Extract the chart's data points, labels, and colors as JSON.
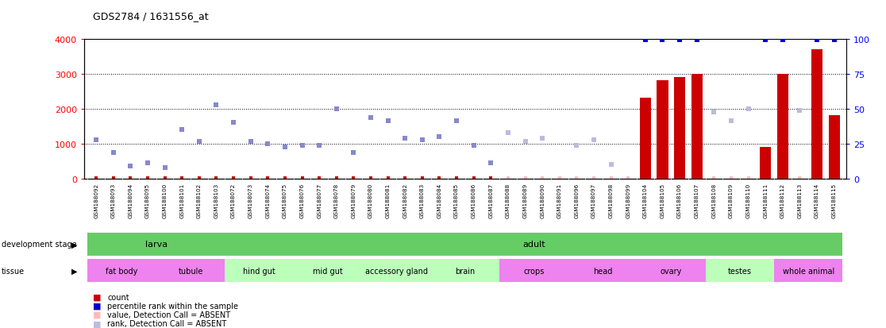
{
  "title": "GDS2784 / 1631556_at",
  "samples": [
    "GSM188092",
    "GSM188093",
    "GSM188094",
    "GSM188095",
    "GSM188100",
    "GSM188101",
    "GSM188102",
    "GSM188103",
    "GSM188072",
    "GSM188073",
    "GSM188074",
    "GSM188075",
    "GSM188076",
    "GSM188077",
    "GSM188078",
    "GSM188079",
    "GSM188080",
    "GSM188081",
    "GSM188082",
    "GSM188083",
    "GSM188084",
    "GSM188085",
    "GSM188086",
    "GSM188087",
    "GSM188088",
    "GSM188089",
    "GSM188090",
    "GSM188091",
    "GSM188096",
    "GSM188097",
    "GSM188098",
    "GSM188099",
    "GSM188104",
    "GSM188105",
    "GSM188106",
    "GSM188107",
    "GSM188108",
    "GSM188109",
    "GSM188110",
    "GSM188111",
    "GSM188112",
    "GSM188113",
    "GSM188114",
    "GSM188115"
  ],
  "count_values": [
    0,
    0,
    0,
    0,
    0,
    0,
    0,
    0,
    0,
    0,
    0,
    0,
    0,
    0,
    0,
    0,
    0,
    0,
    0,
    0,
    0,
    0,
    0,
    0,
    0,
    0,
    0,
    0,
    0,
    0,
    0,
    0,
    2300,
    2800,
    2900,
    3000,
    0,
    0,
    0,
    900,
    3000,
    0,
    3700,
    1800
  ],
  "count_absent": [
    false,
    false,
    false,
    false,
    false,
    false,
    false,
    false,
    false,
    false,
    false,
    false,
    false,
    false,
    false,
    false,
    false,
    false,
    false,
    false,
    false,
    false,
    false,
    false,
    true,
    true,
    true,
    true,
    true,
    true,
    true,
    true,
    false,
    false,
    false,
    false,
    true,
    true,
    true,
    false,
    false,
    true,
    false,
    false
  ],
  "rank_vals": [
    1100,
    750,
    350,
    450,
    300,
    1400,
    1050,
    2100,
    1600,
    1050,
    1000,
    900,
    950,
    950,
    2000,
    750,
    1750,
    1650,
    1150,
    1100,
    1200,
    1650,
    950,
    450,
    null,
    null,
    null,
    null,
    null,
    null,
    null,
    null,
    null,
    null,
    null,
    null,
    null,
    null,
    null,
    null,
    null,
    null,
    null,
    null
  ],
  "rank_pct": [
    null,
    null,
    null,
    null,
    null,
    null,
    null,
    null,
    null,
    null,
    null,
    null,
    null,
    null,
    null,
    null,
    null,
    null,
    null,
    null,
    null,
    null,
    null,
    null,
    null,
    null,
    null,
    null,
    null,
    null,
    null,
    null,
    99,
    99,
    99,
    99,
    null,
    null,
    null,
    99,
    99,
    null,
    99,
    99
  ],
  "absent_rank_vals": [
    null,
    null,
    null,
    null,
    null,
    null,
    null,
    null,
    null,
    null,
    null,
    null,
    null,
    null,
    null,
    null,
    null,
    null,
    null,
    null,
    null,
    null,
    null,
    null,
    1300,
    1050,
    1150,
    null,
    950,
    1100,
    400,
    null,
    null,
    null,
    null,
    null,
    1900,
    1650,
    2000,
    null,
    null,
    1950,
    null,
    null
  ],
  "development_stages": [
    {
      "label": "larva",
      "start": 0,
      "end": 7
    },
    {
      "label": "adult",
      "start": 8,
      "end": 43
    }
  ],
  "tissues": [
    {
      "label": "fat body",
      "start": 0,
      "end": 3,
      "color": "#ee82ee"
    },
    {
      "label": "tubule",
      "start": 4,
      "end": 7,
      "color": "#ee82ee"
    },
    {
      "label": "hind gut",
      "start": 8,
      "end": 11,
      "color": "#bbffbb"
    },
    {
      "label": "mid gut",
      "start": 12,
      "end": 15,
      "color": "#bbffbb"
    },
    {
      "label": "accessory gland",
      "start": 16,
      "end": 19,
      "color": "#bbffbb"
    },
    {
      "label": "brain",
      "start": 20,
      "end": 23,
      "color": "#bbffbb"
    },
    {
      "label": "crops",
      "start": 24,
      "end": 27,
      "color": "#ee82ee"
    },
    {
      "label": "head",
      "start": 28,
      "end": 31,
      "color": "#ee82ee"
    },
    {
      "label": "ovary",
      "start": 32,
      "end": 35,
      "color": "#ee82ee"
    },
    {
      "label": "testes",
      "start": 36,
      "end": 39,
      "color": "#bbffbb"
    },
    {
      "label": "whole animal",
      "start": 40,
      "end": 43,
      "color": "#ee82ee"
    }
  ],
  "ylim_left": [
    0,
    4000
  ],
  "ylim_right": [
    0,
    100
  ],
  "yticks_left": [
    0,
    1000,
    2000,
    3000,
    4000
  ],
  "yticks_right": [
    0,
    25,
    50,
    75,
    100
  ],
  "bar_color": "#cc0000",
  "dot_color_present": "#8888cc",
  "dot_color_absent": "#bbbbdd",
  "pct_color": "#0000cc",
  "green_stage": "#66cc66",
  "gray_bg": "#c8c8c8"
}
